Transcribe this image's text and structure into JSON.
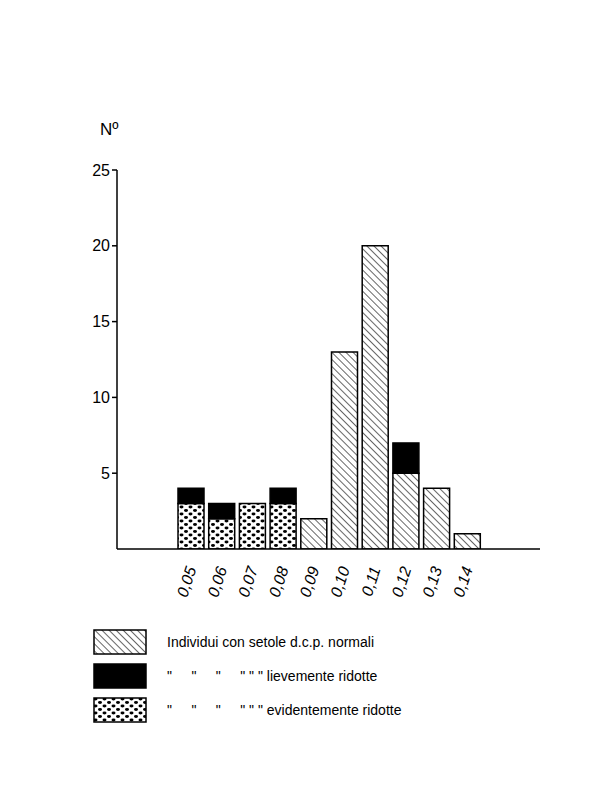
{
  "chart_data": {
    "type": "bar",
    "stacked": true,
    "ylabel": "Nº",
    "categories": [
      "0,05",
      "0,06",
      "0,07",
      "0,08",
      "0,09",
      "0,10",
      "0,11",
      "0,12",
      "0,13",
      "0,14"
    ],
    "series": [
      {
        "name": "Individui con setole d.c.p. normali",
        "color": "#000000",
        "values": [
          0,
          0,
          0,
          0,
          2,
          13,
          20,
          5,
          4,
          1
        ]
      },
      {
        "name": "\"     \"     \"     \" \" \" lievemente ridotte",
        "color": "#000000",
        "values": [
          1,
          1,
          0,
          1,
          0,
          0,
          0,
          2,
          0,
          0
        ]
      },
      {
        "name": "\"     \"     \"     \" \" \" evidentemente ridotte",
        "color": "#000000",
        "values": [
          3,
          2,
          3,
          3,
          0,
          0,
          0,
          0,
          0,
          0
        ]
      }
    ],
    "ylim": [
      0,
      25
    ],
    "yticks": [
      5,
      10,
      15,
      20,
      25
    ]
  }
}
